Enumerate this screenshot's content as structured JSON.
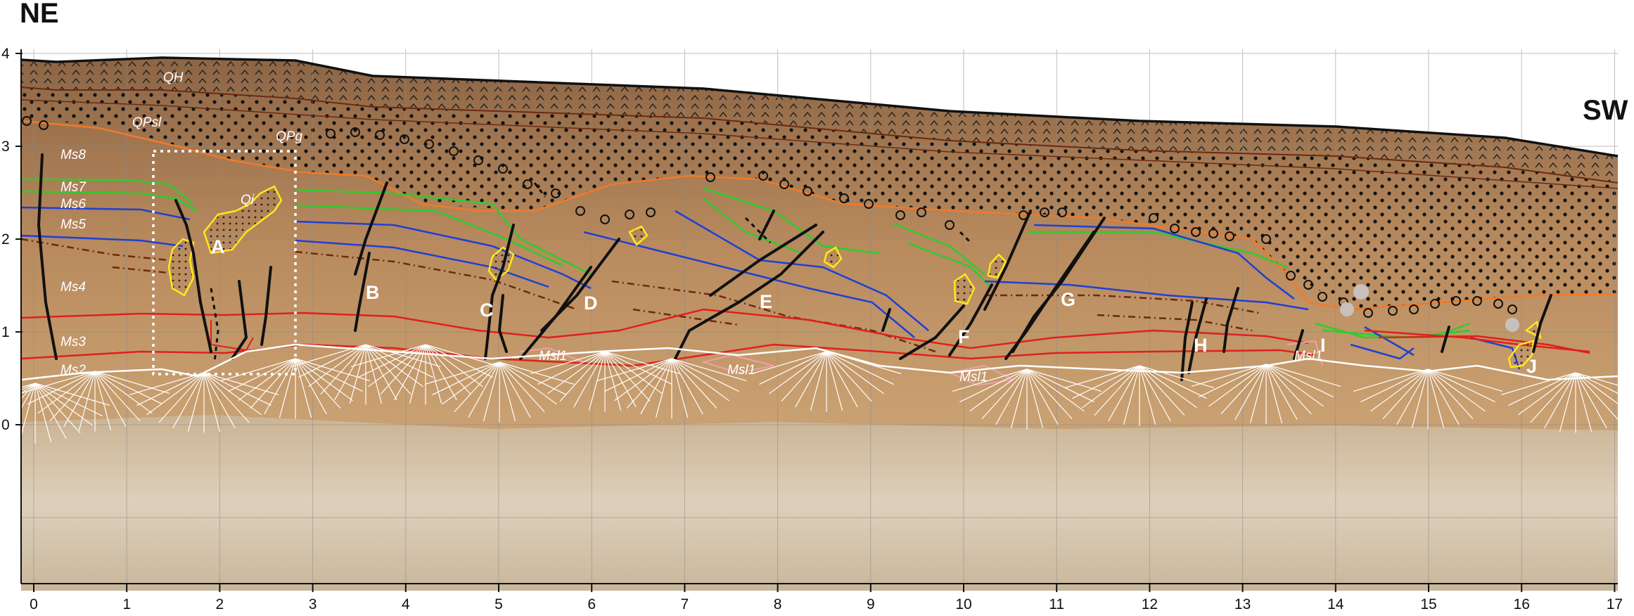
{
  "orientation": {
    "left": "NE",
    "right": "SW"
  },
  "axes": {
    "x_ticks": [
      "0",
      "1",
      "2",
      "3",
      "4",
      "5",
      "6",
      "7",
      "8",
      "9",
      "10",
      "11",
      "12",
      "13",
      "14",
      "15",
      "16",
      "17"
    ],
    "y_ticks": [
      "4",
      "3",
      "2",
      "1",
      "0"
    ],
    "x_range": [
      0,
      17
    ],
    "y_range": [
      -1.7,
      4
    ],
    "grid": true
  },
  "units": {
    "QH": "QH",
    "QPsl": "QPsl",
    "QPg": "QPg",
    "Ms8": "Ms8",
    "Ms7": "Ms7",
    "Ms6": "Ms6",
    "Ms5": "Ms5",
    "Ms4": "Ms4",
    "Ms3": "Ms3",
    "Ms2": "Ms2",
    "Qi": "Qi",
    "Msl1_a": "Msl1",
    "Msl1_b": "Msl1",
    "Msl1_c": "Msl1",
    "Msl1_d": "Msl1"
  },
  "faults": [
    "A",
    "B",
    "C",
    "D",
    "E",
    "F",
    "G",
    "H",
    "I",
    "J"
  ],
  "colors": {
    "sky": "#ffffff",
    "sediment": "#b98a5c",
    "pit_floor": "#d8cbb5",
    "grid": "#8a8a8a",
    "fault": "#111111",
    "green_horizon": "#2ecc2e",
    "blue_horizon": "#1f3fd6",
    "red_horizon": "#e0201c",
    "orange_horizon": "#f07a2a",
    "dashed_horizon": "#6b2a10",
    "pink_horizon": "#f0a0a8",
    "infill_outline": "#ffe81a",
    "base_line": "#ffffff",
    "top_line": "#111111",
    "box": "#ffffff"
  }
}
